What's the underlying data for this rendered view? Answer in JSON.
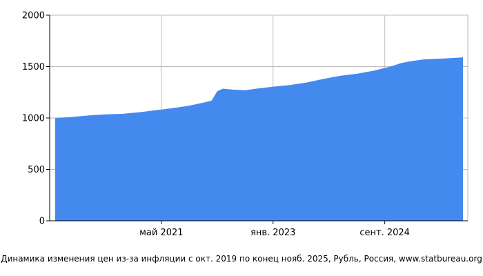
{
  "chart_data": {
    "type": "area",
    "x_start": "2019-10",
    "x_end": "2025-11",
    "ylim": [
      0,
      2000
    ],
    "yticks": [
      0,
      500,
      1000,
      1500,
      2000
    ],
    "xticks": [
      {
        "date": "2021-05",
        "label": "май 2021"
      },
      {
        "date": "2023-01",
        "label": "янв. 2023"
      },
      {
        "date": "2024-09",
        "label": "сент. 2024"
      }
    ],
    "grid": true,
    "color": "#448AEE",
    "x": [
      "2019-10",
      "2020-01",
      "2020-04",
      "2020-07",
      "2020-10",
      "2021-01",
      "2021-04",
      "2021-07",
      "2021-10",
      "2022-01",
      "2022-02",
      "2022-03",
      "2022-04",
      "2022-06",
      "2022-08",
      "2022-10",
      "2023-01",
      "2023-04",
      "2023-07",
      "2023-10",
      "2024-01",
      "2024-04",
      "2024-07",
      "2024-10",
      "2024-12",
      "2025-02",
      "2025-04",
      "2025-06",
      "2025-08",
      "2025-11"
    ],
    "values": [
      1000,
      1010,
      1025,
      1035,
      1040,
      1055,
      1075,
      1095,
      1120,
      1155,
      1170,
      1260,
      1285,
      1275,
      1270,
      1285,
      1305,
      1320,
      1345,
      1380,
      1410,
      1430,
      1460,
      1500,
      1535,
      1555,
      1570,
      1575,
      1580,
      1590
    ]
  },
  "caption": "Динамика изменения цен из-за инфляции с окт. 2019 по конец нояб. 2025, Рубль, Россия, www.statbureau.org"
}
